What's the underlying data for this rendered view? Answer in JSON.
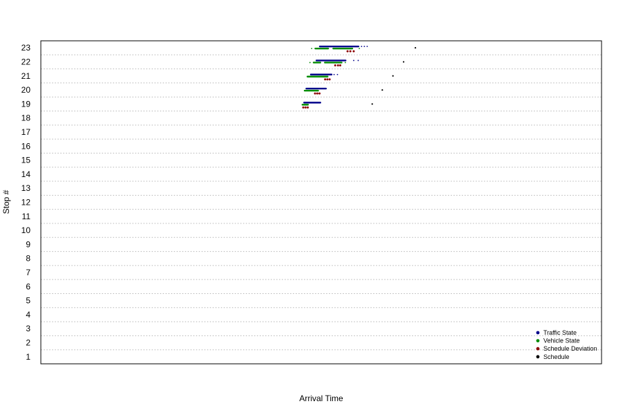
{
  "chart_data": {
    "type": "scatter",
    "title": "",
    "xlabel": "Arrival Time",
    "ylabel": "Stop #",
    "ylim": [
      0.5,
      23.5
    ],
    "xlim": [
      0,
      100
    ],
    "y_ticks": [
      1,
      2,
      3,
      4,
      5,
      6,
      7,
      8,
      9,
      10,
      11,
      12,
      13,
      14,
      15,
      16,
      17,
      18,
      19,
      20,
      21,
      22,
      23
    ],
    "x_ticks_shown": false,
    "grid": "horizontal-dotted",
    "legend_position": "bottom-right",
    "legend": [
      {
        "label": "Traffic State",
        "color": "#00008b"
      },
      {
        "label": "Vehicle State",
        "color": "#008b00"
      },
      {
        "label": "Schedule Deviation",
        "color": "#8b0000"
      },
      {
        "label": "Schedule",
        "color": "#000000"
      }
    ],
    "series": [
      {
        "name": "Traffic State",
        "color": "#00008b",
        "ranges": [
          {
            "stop": 23,
            "x0": 49.6,
            "x1": 56.8
          },
          {
            "stop": 22,
            "x0": 49.0,
            "x1": 54.5
          },
          {
            "stop": 21,
            "x0": 48.0,
            "x1": 52.0
          },
          {
            "stop": 20,
            "x0": 47.2,
            "x1": 51.0
          },
          {
            "stop": 19,
            "x0": 46.8,
            "x1": 50.0
          }
        ],
        "outliers": [
          {
            "stop": 23,
            "x": 57.2
          },
          {
            "stop": 23,
            "x": 57.7
          },
          {
            "stop": 23,
            "x": 58.2
          },
          {
            "stop": 22,
            "x": 55.8
          },
          {
            "stop": 22,
            "x": 56.6
          },
          {
            "stop": 21,
            "x": 52.3
          },
          {
            "stop": 21,
            "x": 52.9
          }
        ]
      },
      {
        "name": "Vehicle State",
        "color": "#008b00",
        "ranges": [
          {
            "stop": 23,
            "x0": 48.8,
            "x1": 51.4
          },
          {
            "stop": 23,
            "x0": 52.0,
            "x1": 55.7
          },
          {
            "stop": 22,
            "x0": 48.5,
            "x1": 50.0
          },
          {
            "stop": 22,
            "x0": 50.5,
            "x1": 53.8
          },
          {
            "stop": 21,
            "x0": 47.4,
            "x1": 51.3
          },
          {
            "stop": 20,
            "x0": 46.9,
            "x1": 49.6
          },
          {
            "stop": 19,
            "x0": 46.5,
            "x1": 47.8
          }
        ],
        "outliers": [
          {
            "stop": 23,
            "x": 48.3
          },
          {
            "stop": 23,
            "x": 56.8
          },
          {
            "stop": 22,
            "x": 48.0
          },
          {
            "stop": 22,
            "x": 54.3
          }
        ]
      },
      {
        "name": "Schedule Deviation",
        "color": "#8b0000",
        "points": [
          {
            "stop": 23,
            "x": 54.7
          },
          {
            "stop": 23,
            "x": 55.2
          },
          {
            "stop": 23,
            "x": 55.8
          },
          {
            "stop": 22,
            "x": 52.5
          },
          {
            "stop": 22,
            "x": 53.0
          },
          {
            "stop": 22,
            "x": 53.4
          },
          {
            "stop": 21,
            "x": 50.7
          },
          {
            "stop": 21,
            "x": 51.1
          },
          {
            "stop": 21,
            "x": 51.5
          },
          {
            "stop": 20,
            "x": 48.9
          },
          {
            "stop": 20,
            "x": 49.3
          },
          {
            "stop": 20,
            "x": 49.7
          },
          {
            "stop": 19,
            "x": 46.8
          },
          {
            "stop": 19,
            "x": 47.2
          },
          {
            "stop": 19,
            "x": 47.6
          }
        ]
      },
      {
        "name": "Schedule",
        "color": "#000000",
        "points": [
          {
            "stop": 23,
            "x": 66.8
          },
          {
            "stop": 22,
            "x": 64.7
          },
          {
            "stop": 21,
            "x": 62.8
          },
          {
            "stop": 20,
            "x": 60.9
          },
          {
            "stop": 19,
            "x": 59.1
          }
        ]
      }
    ]
  }
}
